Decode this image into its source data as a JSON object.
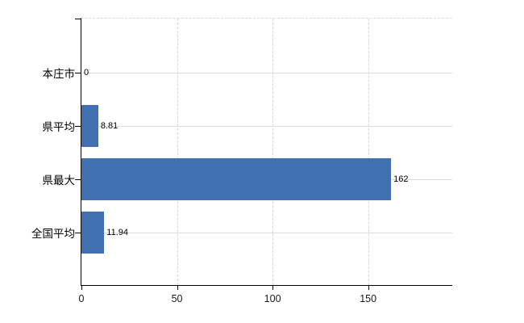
{
  "chart_data": {
    "type": "bar",
    "orientation": "horizontal",
    "title": "",
    "categories": [
      "本庄市",
      "県平均",
      "県最大",
      "全国平均"
    ],
    "values": [
      0,
      8.81,
      162,
      11.94
    ],
    "value_labels": [
      "0",
      "8.81",
      "162",
      "11.94"
    ],
    "xlabel": "",
    "ylabel": "",
    "xlim": [
      0,
      194
    ],
    "xticks": [
      0,
      50,
      100,
      150
    ],
    "xtick_labels": [
      "0",
      "50",
      "100",
      "150"
    ],
    "grid": true,
    "legend": false,
    "colors": {
      "bar": "#4170b0",
      "axis": "#000000",
      "horizontal_grid": "#d9e0d8",
      "vertical_grid": "#d6d6d6",
      "background": "#ffffff",
      "text": "#000000"
    }
  }
}
